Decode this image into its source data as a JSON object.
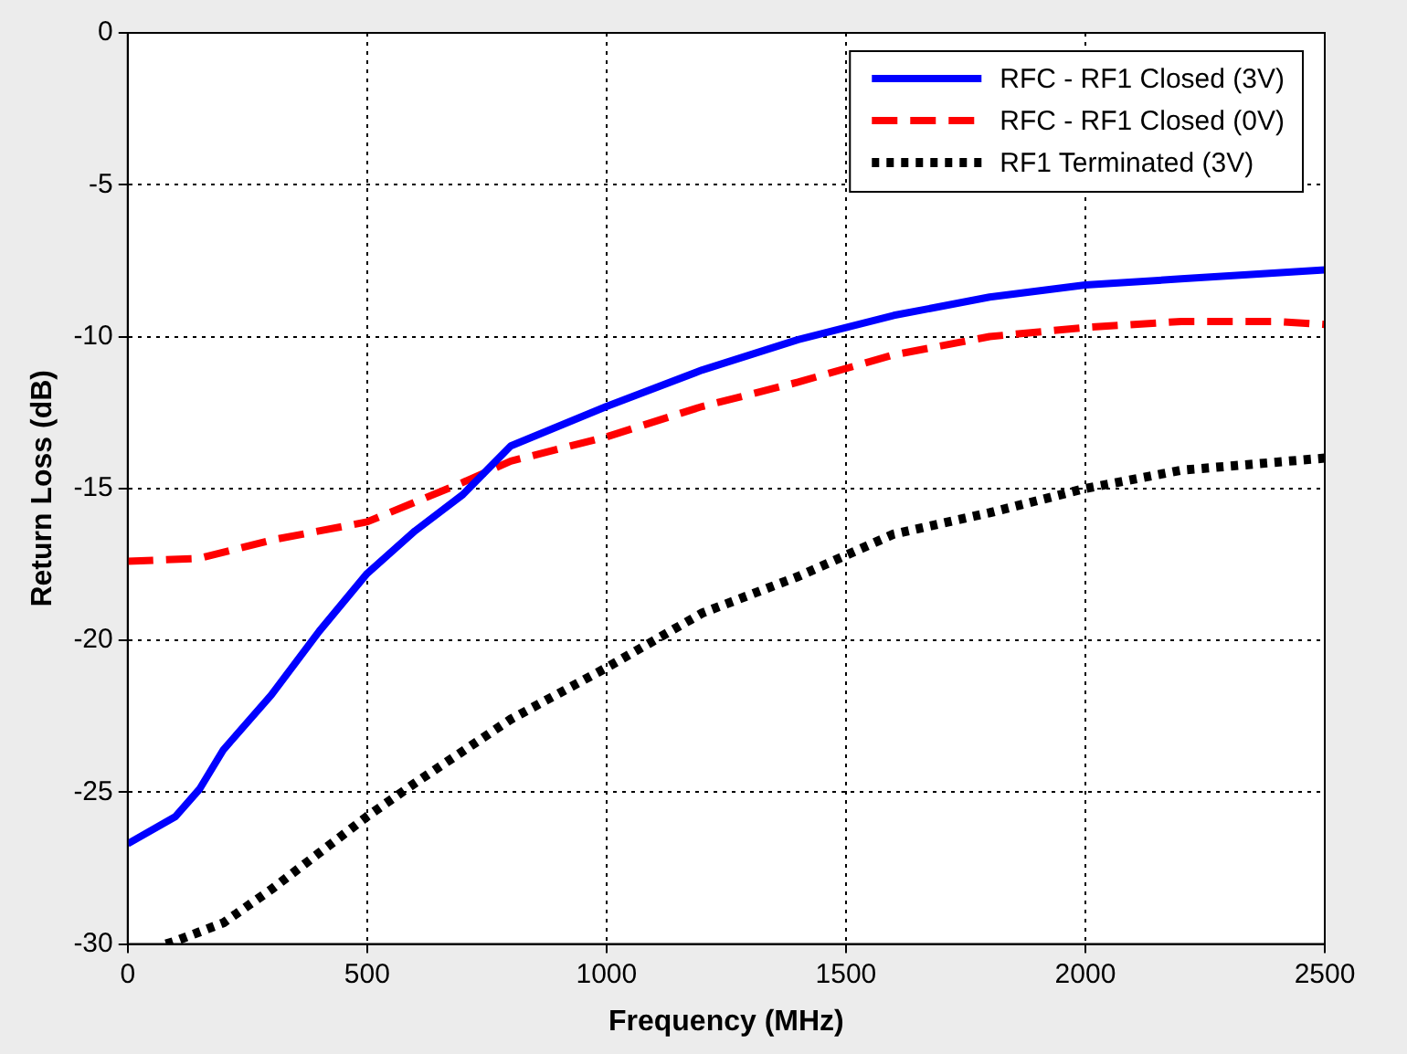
{
  "chart_data": {
    "type": "line",
    "xlabel": "Frequency (MHz)",
    "ylabel": "Return Loss (dB)",
    "xlim": [
      0,
      2500
    ],
    "xticks": [
      0,
      500,
      1000,
      1500,
      2000,
      2500
    ],
    "ylim": [
      -30,
      0
    ],
    "yticks": [
      -30,
      -25,
      -20,
      -15,
      -10,
      -5,
      0
    ],
    "grid": true,
    "legend": "top right",
    "marker": "none",
    "series": [
      {
        "name": "RFC - RF1 Closed (3V)",
        "color": "#0000ff",
        "line_style": "solid",
        "x": [
          0,
          100,
          150,
          200,
          300,
          400,
          500,
          600,
          700,
          800,
          1000,
          1200,
          1400,
          1600,
          1800,
          2000,
          2200,
          2500
        ],
        "values": [
          -26.7,
          -25.8,
          -24.9,
          -23.6,
          -21.8,
          -19.7,
          -17.8,
          -16.4,
          -15.2,
          -13.6,
          -12.3,
          -11.1,
          -10.1,
          -9.3,
          -8.7,
          -8.3,
          -8.1,
          -7.8
        ]
      },
      {
        "name": "RFC - RF1 Closed (0V)",
        "color": "#ff0000",
        "line_style": "dashed",
        "x": [
          0,
          150,
          300,
          500,
          700,
          800,
          1000,
          1200,
          1400,
          1600,
          1800,
          2000,
          2200,
          2400,
          2500
        ],
        "values": [
          -17.4,
          -17.3,
          -16.7,
          -16.1,
          -14.8,
          -14.1,
          -13.3,
          -12.3,
          -11.5,
          -10.6,
          -10.0,
          -9.7,
          -9.5,
          -9.5,
          -9.6
        ]
      },
      {
        "name": "RF1 Terminated (3V)",
        "color": "#000000",
        "line_style": "dotted",
        "x": [
          80,
          100,
          200,
          300,
          400,
          500,
          600,
          800,
          1000,
          1200,
          1400,
          1600,
          1800,
          2000,
          2200,
          2500
        ],
        "values": [
          -30,
          -29.9,
          -29.3,
          -28.2,
          -27.0,
          -25.8,
          -24.7,
          -22.6,
          -20.9,
          -19.1,
          -17.9,
          -16.5,
          -15.8,
          -15.0,
          -14.4,
          -14.0
        ]
      }
    ]
  }
}
